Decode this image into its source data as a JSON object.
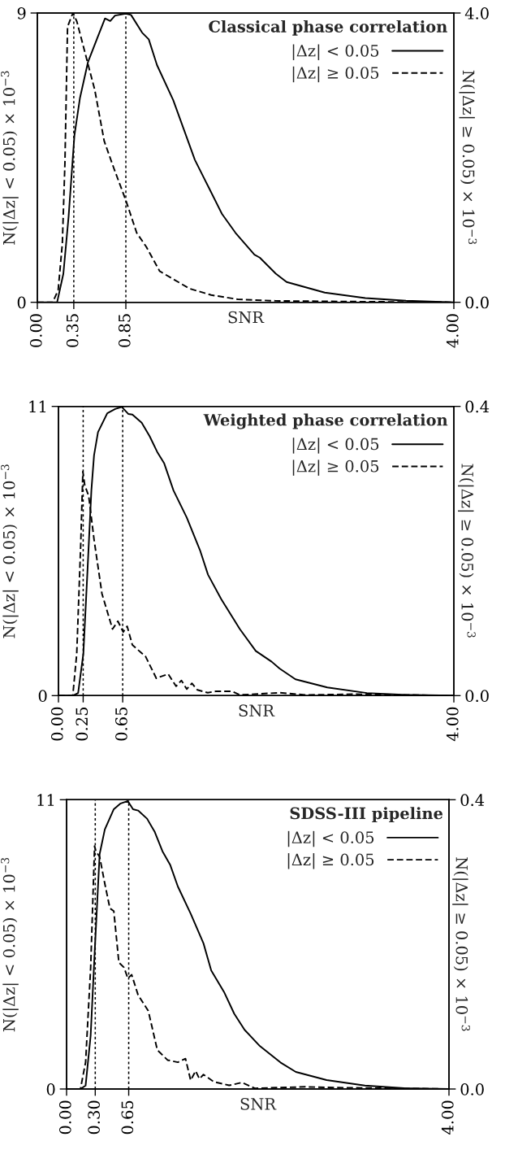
{
  "chart_data": [
    {
      "type": "line",
      "title": "Classical phase correlation",
      "xlabel": "SNR",
      "ylabel": "N(|Δz| < 0.05) × 10$^{−3}$",
      "y2label": "N(|Δz| ≥ 0.05) × 10$^{−3}$",
      "xlim": [
        0,
        4
      ],
      "xticks": [
        {
          "value": 0,
          "label": "0.00"
        },
        {
          "value": 0.35,
          "label": "0.35"
        },
        {
          "value": 0.85,
          "label": "0.85"
        },
        {
          "value": 4,
          "label": "4.00"
        }
      ],
      "ylim": [
        0,
        9
      ],
      "yticks": [
        0,
        9
      ],
      "y2lim": [
        0,
        4
      ],
      "y2ticks": [
        {
          "value": 0,
          "label": "0.0"
        },
        {
          "value": 4,
          "label": "4.0"
        }
      ],
      "legend": "top right",
      "grid": false,
      "marker": "none",
      "ref_lines": [
        {
          "axis": "x",
          "value": 0.35,
          "color": "#000000",
          "line_style": "dotted"
        },
        {
          "axis": "x",
          "value": 0.85,
          "color": "#000000",
          "line_style": "dotted"
        }
      ],
      "series": [
        {
          "name": "|Δz| < 0.05",
          "color": "#000000",
          "line_style": "solid",
          "x": [
            0,
            0.19,
            0.25,
            0.3,
            0.356,
            0.41,
            0.486,
            0.577,
            0.65,
            0.7,
            0.746,
            0.85,
            0.9,
            1.006,
            1.07,
            1.149,
            1.305,
            1.409,
            1.513,
            1.643,
            1.773,
            1.903,
            2.085,
            2.136,
            2.29,
            2.394,
            2.76,
            3.15,
            3.54,
            4.0
          ],
          "values": [
            0,
            0,
            0.89,
            2.66,
            5.19,
            6.37,
            7.47,
            8.23,
            8.83,
            8.75,
            8.92,
            8.98,
            8.94,
            8.39,
            8.18,
            7.38,
            6.29,
            5.36,
            4.43,
            3.59,
            2.75,
            2.16,
            1.48,
            1.39,
            0.89,
            0.63,
            0.3,
            0.13,
            0.05,
            0
          ]
        },
        {
          "name": "|Δz| ≥ 0.05",
          "color": "#000000",
          "line_style": "dashed",
          "axis": "y2",
          "x": [
            0,
            0.148,
            0.2,
            0.24,
            0.265,
            0.29,
            0.33,
            0.343,
            0.38,
            0.447,
            0.551,
            0.642,
            0.733,
            0.85,
            0.954,
            1.045,
            1.175,
            1.305,
            1.46,
            1.669,
            1.93,
            2.29,
            3.0,
            4.0
          ],
          "values": [
            0,
            0,
            0.17,
            0.81,
            1.93,
            3.81,
            3.96,
            4.0,
            3.88,
            3.51,
            2.94,
            2.23,
            1.86,
            1.41,
            0.96,
            0.77,
            0.43,
            0.32,
            0.19,
            0.1,
            0.04,
            0.02,
            0.01,
            0
          ]
        }
      ]
    },
    {
      "type": "line",
      "title": "Weighted phase correlation",
      "xlabel": "SNR",
      "ylabel": "N(|Δz| < 0.05) × 10$^{−3}$",
      "y2label": "N(|Δz| ≥ 0.05) × 10$^{−3}$",
      "xlim": [
        0,
        4
      ],
      "xticks": [
        {
          "value": 0,
          "label": "0.00"
        },
        {
          "value": 0.25,
          "label": "0.25"
        },
        {
          "value": 0.65,
          "label": "0.65"
        },
        {
          "value": 4,
          "label": "4.00"
        }
      ],
      "ylim": [
        0,
        11
      ],
      "yticks": [
        0,
        11
      ],
      "y2lim": [
        0,
        0.4
      ],
      "y2ticks": [
        {
          "value": 0,
          "label": "0.0"
        },
        {
          "value": 0.4,
          "label": "0.4"
        }
      ],
      "legend": "top right",
      "grid": false,
      "marker": "none",
      "ref_lines": [
        {
          "axis": "x",
          "value": 0.25,
          "color": "#000000",
          "line_style": "dotted"
        },
        {
          "axis": "x",
          "value": 0.65,
          "color": "#000000",
          "line_style": "dotted"
        }
      ],
      "series": [
        {
          "name": "|Δz| < 0.05",
          "color": "#000000",
          "line_style": "solid",
          "x": [
            0,
            0.145,
            0.199,
            0.252,
            0.293,
            0.333,
            0.36,
            0.4,
            0.494,
            0.574,
            0.641,
            0.708,
            0.748,
            0.842,
            0.923,
            1.003,
            1.07,
            1.164,
            1.298,
            1.432,
            1.513,
            1.647,
            1.835,
            1.996,
            2.157,
            2.237,
            2.398,
            2.72,
            3.12,
            3.53,
            4.0
          ],
          "values": [
            0,
            0,
            0.1,
            1.6,
            4.7,
            7.8,
            9.14,
            10.02,
            10.74,
            10.9,
            10.98,
            10.71,
            10.69,
            10.38,
            9.86,
            9.24,
            8.83,
            7.8,
            6.77,
            5.53,
            4.6,
            3.67,
            2.53,
            1.7,
            1.29,
            1.03,
            0.62,
            0.31,
            0.1,
            0.03,
            0
          ]
        },
        {
          "name": "|Δz| ≥ 0.05",
          "color": "#000000",
          "line_style": "dashed",
          "axis": "y2",
          "x": [
            0,
            0.145,
            0.185,
            0.225,
            0.247,
            0.266,
            0.306,
            0.36,
            0.44,
            0.547,
            0.601,
            0.655,
            0.695,
            0.748,
            0.882,
            0.99,
            1.11,
            1.19,
            1.244,
            1.298,
            1.35,
            1.405,
            1.51,
            1.59,
            1.754,
            1.835,
            2.237,
            2.5,
            3.0,
            4.0
          ],
          "values": [
            0,
            0,
            0.058,
            0.208,
            0.31,
            0.291,
            0.276,
            0.216,
            0.141,
            0.092,
            0.103,
            0.088,
            0.096,
            0.07,
            0.054,
            0.024,
            0.03,
            0.013,
            0.021,
            0.009,
            0.017,
            0.008,
            0.004,
            0.006,
            0.006,
            0.001,
            0.004,
            0.001,
            0.002,
            0
          ]
        }
      ]
    },
    {
      "type": "line",
      "title": "SDSS-III pipeline",
      "xlabel": "SNR",
      "ylabel": "N(|Δz| < 0.05) × 10$^{−3}$",
      "y2label": "N(|Δz| ≥ 0.05) × 10$^{−3}$",
      "xlim": [
        0,
        4
      ],
      "xticks": [
        {
          "value": 0,
          "label": "0.00"
        },
        {
          "value": 0.3,
          "label": "0.30"
        },
        {
          "value": 0.65,
          "label": "0.65"
        },
        {
          "value": 4,
          "label": "4.00"
        }
      ],
      "ylim": [
        0,
        11
      ],
      "yticks": [
        0,
        11
      ],
      "y2lim": [
        0,
        0.4
      ],
      "y2ticks": [
        {
          "value": 0,
          "label": "0.0"
        },
        {
          "value": 0.4,
          "label": "0.4"
        }
      ],
      "legend": "top right",
      "grid": false,
      "marker": "none",
      "ref_lines": [
        {
          "axis": "x",
          "value": 0.3,
          "color": "#000000",
          "line_style": "dotted"
        },
        {
          "axis": "x",
          "value": 0.65,
          "color": "#000000",
          "line_style": "dotted"
        }
      ],
      "series": [
        {
          "name": "|Δz| < 0.05",
          "color": "#000000",
          "line_style": "solid",
          "x": [
            0,
            0.145,
            0.199,
            0.252,
            0.293,
            0.346,
            0.4,
            0.494,
            0.561,
            0.641,
            0.695,
            0.748,
            0.842,
            0.923,
            1.003,
            1.083,
            1.164,
            1.298,
            1.432,
            1.513,
            1.647,
            1.754,
            1.862,
            2.023,
            2.237,
            2.398,
            2.72,
            3.12,
            3.53,
            4.0
          ],
          "values": [
            0,
            0,
            0.13,
            2.04,
            5.13,
            8.94,
            9.87,
            10.64,
            10.85,
            10.95,
            10.64,
            10.59,
            10.28,
            9.77,
            9.04,
            8.53,
            7.7,
            6.67,
            5.54,
            4.51,
            3.69,
            2.86,
            2.25,
            1.63,
            1.01,
            0.65,
            0.34,
            0.13,
            0.03,
            0
          ]
        },
        {
          "name": "|Δz| ≥ 0.05",
          "color": "#000000",
          "line_style": "dashed",
          "axis": "y2",
          "x": [
            0,
            0.145,
            0.199,
            0.252,
            0.293,
            0.306,
            0.346,
            0.4,
            0.453,
            0.494,
            0.547,
            0.601,
            0.641,
            0.681,
            0.748,
            0.855,
            0.949,
            1.056,
            1.164,
            1.244,
            1.298,
            1.35,
            1.39,
            1.432,
            1.54,
            1.7,
            1.835,
            1.969,
            2.237,
            2.5,
            2.8,
            4.0
          ],
          "values": [
            0,
            0,
            0.037,
            0.168,
            0.336,
            0.329,
            0.321,
            0.284,
            0.25,
            0.246,
            0.175,
            0.168,
            0.153,
            0.158,
            0.13,
            0.108,
            0.054,
            0.04,
            0.037,
            0.042,
            0.012,
            0.025,
            0.014,
            0.02,
            0.01,
            0.005,
            0.009,
            0.001,
            0.002,
            0.003,
            0.002,
            0
          ]
        }
      ]
    }
  ]
}
